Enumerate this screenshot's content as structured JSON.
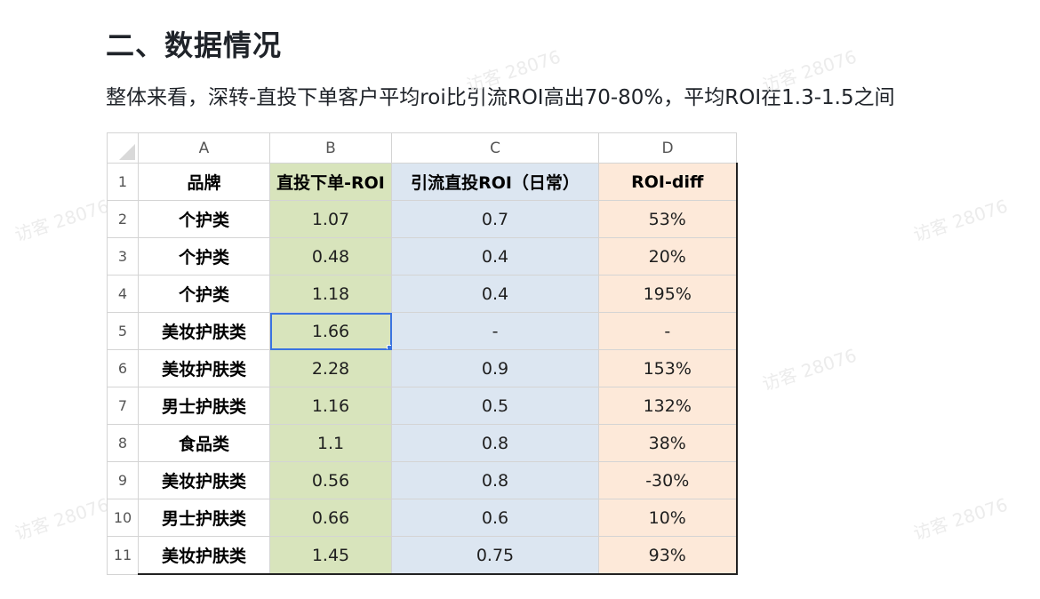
{
  "heading": "二、数据情况",
  "summary": "整体来看，深转-直投下单客户平均roi比引流ROI高出70-80%，平均ROI在1.3-1.5之间",
  "watermark_text": "访客 28076",
  "sheet": {
    "column_letters": [
      "A",
      "B",
      "C",
      "D"
    ],
    "header_row": {
      "num": "1",
      "brand": "品牌",
      "direct_roi": "直投下单-ROI",
      "traffic_roi": "引流直投ROI（日常）",
      "roi_diff": "ROI-diff"
    },
    "rows": [
      {
        "num": "2",
        "brand": "个护类",
        "direct_roi": "1.07",
        "traffic_roi": "0.7",
        "roi_diff": "53%"
      },
      {
        "num": "3",
        "brand": "个护类",
        "direct_roi": "0.48",
        "traffic_roi": "0.4",
        "roi_diff": "20%"
      },
      {
        "num": "4",
        "brand": "个护类",
        "direct_roi": "1.18",
        "traffic_roi": "0.4",
        "roi_diff": "195%"
      },
      {
        "num": "5",
        "brand": "美妆护肤类",
        "direct_roi": "1.66",
        "traffic_roi": "-",
        "roi_diff": "-"
      },
      {
        "num": "6",
        "brand": "美妆护肤类",
        "direct_roi": "2.28",
        "traffic_roi": "0.9",
        "roi_diff": "153%"
      },
      {
        "num": "7",
        "brand": "男士护肤类",
        "direct_roi": "1.16",
        "traffic_roi": "0.5",
        "roi_diff": "132%"
      },
      {
        "num": "8",
        "brand": "食品类",
        "direct_roi": "1.1",
        "traffic_roi": "0.8",
        "roi_diff": "38%"
      },
      {
        "num": "9",
        "brand": "美妆护肤类",
        "direct_roi": "0.56",
        "traffic_roi": "0.8",
        "roi_diff": "-30%"
      },
      {
        "num": "10",
        "brand": "男士护肤类",
        "direct_roi": "0.66",
        "traffic_roi": "0.6",
        "roi_diff": "10%"
      },
      {
        "num": "11",
        "brand": "美妆护肤类",
        "direct_roi": "1.45",
        "traffic_roi": "0.75",
        "roi_diff": "93%"
      }
    ],
    "selected_cell": "B5",
    "colors": {
      "direct_roi_fill": "#d8e4bc",
      "traffic_roi_fill": "#dce6f1",
      "roi_diff_fill": "#fde9d9",
      "selection": "#3b73e0"
    }
  }
}
